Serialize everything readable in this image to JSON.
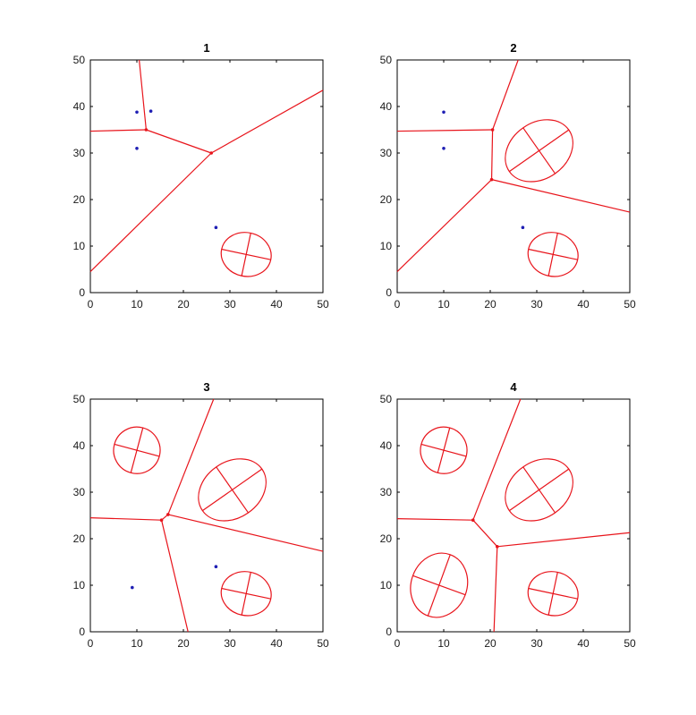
{
  "colors": {
    "region_boundary": "#e8141b",
    "ellipse": "#e8141b",
    "point": "#1f1fb4",
    "axis": "#000000"
  },
  "chart_data": [
    {
      "type": "scatter",
      "title": "1",
      "xlim": [
        0,
        50
      ],
      "ylim": [
        0,
        50
      ],
      "xticks": [
        "0",
        "10",
        "20",
        "30",
        "40",
        "50"
      ],
      "yticks": [
        "0",
        "10",
        "20",
        "30",
        "40",
        "50"
      ],
      "grid": false,
      "points": [
        [
          10,
          38.8
        ],
        [
          13,
          39
        ],
        [
          10,
          31
        ],
        [
          27,
          14
        ]
      ],
      "vertices": [
        [
          12,
          35
        ],
        [
          26,
          30
        ]
      ],
      "segments": [
        [
          [
            10.5,
            50
          ],
          [
            12,
            35
          ]
        ],
        [
          [
            0,
            34.7
          ],
          [
            12,
            35
          ]
        ],
        [
          [
            12,
            35
          ],
          [
            26,
            30
          ]
        ],
        [
          [
            26,
            30
          ],
          [
            50,
            43.5
          ]
        ],
        [
          [
            26,
            30
          ],
          [
            0,
            4.5
          ]
        ]
      ],
      "ellipses": [
        {
          "cx": 33.5,
          "cy": 8.2,
          "rx": 5.4,
          "ry": 4.7,
          "angle": -12
        }
      ]
    },
    {
      "type": "scatter",
      "title": "2",
      "xlim": [
        0,
        50
      ],
      "ylim": [
        0,
        50
      ],
      "xticks": [
        "0",
        "10",
        "20",
        "30",
        "40",
        "50"
      ],
      "yticks": [
        "0",
        "10",
        "20",
        "30",
        "40",
        "50"
      ],
      "grid": false,
      "points": [
        [
          10,
          38.8
        ],
        [
          10,
          31
        ],
        [
          27,
          14
        ]
      ],
      "vertices": [
        [
          20.5,
          35
        ],
        [
          20.3,
          24.3
        ]
      ],
      "segments": [
        [
          [
            0,
            34.7
          ],
          [
            20.5,
            35
          ]
        ],
        [
          [
            20.5,
            35
          ],
          [
            26,
            50
          ]
        ],
        [
          [
            20.5,
            35
          ],
          [
            20.3,
            24.3
          ]
        ],
        [
          [
            20.3,
            24.3
          ],
          [
            0,
            4.5
          ]
        ],
        [
          [
            20.3,
            24.3
          ],
          [
            50,
            17.3
          ]
        ]
      ],
      "ellipses": [
        {
          "cx": 30.5,
          "cy": 30.5,
          "rx": 7.8,
          "ry": 6.0,
          "angle": 35
        },
        {
          "cx": 33.5,
          "cy": 8.2,
          "rx": 5.4,
          "ry": 4.7,
          "angle": -12
        }
      ]
    },
    {
      "type": "scatter",
      "title": "3",
      "xlim": [
        0,
        50
      ],
      "ylim": [
        0,
        50
      ],
      "xticks": [
        "0",
        "10",
        "20",
        "30",
        "40",
        "50"
      ],
      "yticks": [
        "0",
        "10",
        "20",
        "30",
        "40",
        "50"
      ],
      "grid": false,
      "points": [
        [
          9,
          9.5
        ],
        [
          27,
          14
        ]
      ],
      "vertices": [
        [
          15.3,
          24
        ],
        [
          16.7,
          25.2
        ]
      ],
      "segments": [
        [
          [
            0,
            24.5
          ],
          [
            15.3,
            24
          ]
        ],
        [
          [
            15.3,
            24
          ],
          [
            16.7,
            25.2
          ]
        ],
        [
          [
            16.7,
            25.2
          ],
          [
            26.5,
            50
          ]
        ],
        [
          [
            16.7,
            25.2
          ],
          [
            50,
            17.3
          ]
        ],
        [
          [
            15.3,
            24
          ],
          [
            21,
            0
          ]
        ]
      ],
      "ellipses": [
        {
          "cx": 10,
          "cy": 39,
          "rx": 5.0,
          "ry": 5.0,
          "angle": -15
        },
        {
          "cx": 30.5,
          "cy": 30.5,
          "rx": 7.8,
          "ry": 6.0,
          "angle": 35
        },
        {
          "cx": 33.5,
          "cy": 8.2,
          "rx": 5.4,
          "ry": 4.7,
          "angle": -12
        }
      ]
    },
    {
      "type": "scatter",
      "title": "4",
      "xlim": [
        0,
        50
      ],
      "ylim": [
        0,
        50
      ],
      "xticks": [
        "0",
        "10",
        "20",
        "30",
        "40",
        "50"
      ],
      "yticks": [
        "0",
        "10",
        "20",
        "30",
        "40",
        "50"
      ],
      "grid": false,
      "points": [],
      "vertices": [
        [
          16.3,
          24
        ],
        [
          21.5,
          18.3
        ]
      ],
      "segments": [
        [
          [
            0,
            24.3
          ],
          [
            16.3,
            24
          ]
        ],
        [
          [
            16.3,
            24
          ],
          [
            26.5,
            50
          ]
        ],
        [
          [
            16.3,
            24
          ],
          [
            21.5,
            18.3
          ]
        ],
        [
          [
            21.5,
            18.3
          ],
          [
            50,
            21.3
          ]
        ],
        [
          [
            21.5,
            18.3
          ],
          [
            20.8,
            0
          ]
        ]
      ],
      "ellipses": [
        {
          "cx": 10,
          "cy": 39,
          "rx": 5.0,
          "ry": 5.0,
          "angle": -15
        },
        {
          "cx": 30.5,
          "cy": 30.5,
          "rx": 7.8,
          "ry": 6.0,
          "angle": 35
        },
        {
          "cx": 9,
          "cy": 10,
          "rx": 7.0,
          "ry": 6.0,
          "angle": 70
        },
        {
          "cx": 33.5,
          "cy": 8.2,
          "rx": 5.4,
          "ry": 4.7,
          "angle": -12
        }
      ]
    }
  ]
}
